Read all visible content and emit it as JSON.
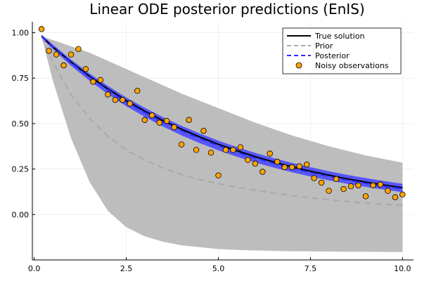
{
  "chart_data": {
    "type": "line",
    "title": "Linear ODE posterior predictions (EnIS)",
    "xlabel": "",
    "ylabel": "",
    "xlim": [
      -0.05,
      10.3
    ],
    "ylim": [
      -0.25,
      1.06
    ],
    "x_ticks": [
      0.0,
      2.5,
      5.0,
      7.5,
      10.0
    ],
    "x_tick_labels": [
      "0.0",
      "2.5",
      "5.0",
      "7.5",
      "10.0"
    ],
    "y_ticks": [
      0.0,
      0.25,
      0.5,
      0.75,
      1.0
    ],
    "y_tick_labels": [
      "0.00",
      "0.25",
      "0.50",
      "0.75",
      "1.00"
    ],
    "grid": true,
    "legend_position": "top-right",
    "colors": {
      "true_solution": "#000000",
      "prior": "#aaaaaa",
      "prior_band": "#bdbdbd",
      "posterior": "#2a2aff",
      "posterior_band": "#4a4aff",
      "observations": "#ffa500"
    },
    "series": [
      {
        "name": "True solution",
        "style": "solid",
        "x": [
          0.2,
          0.5,
          1.0,
          1.5,
          2.0,
          2.5,
          3.0,
          3.5,
          4.0,
          4.5,
          5.0,
          5.5,
          6.0,
          6.5,
          7.0,
          7.5,
          8.0,
          8.5,
          9.0,
          9.5,
          10.0
        ],
        "y": [
          0.98,
          0.923,
          0.838,
          0.76,
          0.69,
          0.627,
          0.569,
          0.516,
          0.469,
          0.426,
          0.386,
          0.351,
          0.318,
          0.289,
          0.262,
          0.238,
          0.216,
          0.196,
          0.178,
          0.162,
          0.147
        ]
      },
      {
        "name": "Prior",
        "style": "dashed",
        "x": [
          0.2,
          0.5,
          1.0,
          1.5,
          2.0,
          2.5,
          3.0,
          3.5,
          4.0,
          4.5,
          5.0,
          5.5,
          6.0,
          6.5,
          7.0,
          7.5,
          8.0,
          8.5,
          9.0,
          9.5,
          10.0
        ],
        "y": [
          0.98,
          0.84,
          0.66,
          0.53,
          0.43,
          0.355,
          0.3,
          0.255,
          0.22,
          0.192,
          0.17,
          0.15,
          0.133,
          0.118,
          0.104,
          0.092,
          0.081,
          0.071,
          0.063,
          0.056,
          0.05
        ],
        "band_upper": [
          0.98,
          0.96,
          0.925,
          0.89,
          0.845,
          0.8,
          0.755,
          0.71,
          0.665,
          0.625,
          0.585,
          0.545,
          0.505,
          0.47,
          0.435,
          0.405,
          0.375,
          0.35,
          0.325,
          0.305,
          0.285
        ],
        "band_lower": [
          0.98,
          0.74,
          0.42,
          0.18,
          0.02,
          -0.07,
          -0.12,
          -0.15,
          -0.17,
          -0.18,
          -0.19,
          -0.195,
          -0.198,
          -0.2,
          -0.202,
          -0.203,
          -0.204,
          -0.205,
          -0.205,
          -0.206,
          -0.206
        ]
      },
      {
        "name": "Posterior",
        "style": "dashed",
        "x": [
          0.2,
          0.5,
          1.0,
          1.5,
          2.0,
          2.5,
          3.0,
          3.5,
          4.0,
          4.5,
          5.0,
          5.5,
          6.0,
          6.5,
          7.0,
          7.5,
          8.0,
          8.5,
          9.0,
          9.5,
          10.0
        ],
        "y": [
          0.98,
          0.922,
          0.835,
          0.756,
          0.685,
          0.62,
          0.562,
          0.509,
          0.461,
          0.418,
          0.379,
          0.343,
          0.311,
          0.282,
          0.255,
          0.231,
          0.21,
          0.19,
          0.172,
          0.156,
          0.141
        ],
        "band_upper": [
          0.99,
          0.935,
          0.852,
          0.776,
          0.707,
          0.644,
          0.587,
          0.535,
          0.488,
          0.445,
          0.406,
          0.371,
          0.339,
          0.31,
          0.284,
          0.26,
          0.238,
          0.218,
          0.2,
          0.184,
          0.169
        ],
        "band_lower": [
          0.97,
          0.91,
          0.818,
          0.736,
          0.662,
          0.596,
          0.537,
          0.483,
          0.435,
          0.392,
          0.353,
          0.318,
          0.286,
          0.258,
          0.232,
          0.209,
          0.188,
          0.169,
          0.152,
          0.137,
          0.123
        ]
      },
      {
        "name": "Noisy observations",
        "style": "scatter",
        "x": [
          0.2,
          0.4,
          0.6,
          0.8,
          1.0,
          1.2,
          1.4,
          1.6,
          1.8,
          2.0,
          2.2,
          2.4,
          2.6,
          2.8,
          3.0,
          3.2,
          3.4,
          3.6,
          3.8,
          4.0,
          4.2,
          4.4,
          4.6,
          4.8,
          5.0,
          5.2,
          5.4,
          5.6,
          5.8,
          6.0,
          6.2,
          6.4,
          6.6,
          6.8,
          7.0,
          7.2,
          7.4,
          7.6,
          7.8,
          8.0,
          8.2,
          8.4,
          8.6,
          8.8,
          9.0,
          9.2,
          9.4,
          9.6,
          9.8,
          10.0
        ],
        "y": [
          1.02,
          0.9,
          0.88,
          0.82,
          0.88,
          0.91,
          0.8,
          0.73,
          0.74,
          0.66,
          0.63,
          0.63,
          0.61,
          0.68,
          0.52,
          0.545,
          0.505,
          0.515,
          0.48,
          0.385,
          0.52,
          0.355,
          0.46,
          0.34,
          0.215,
          0.355,
          0.355,
          0.37,
          0.3,
          0.28,
          0.235,
          0.335,
          0.29,
          0.26,
          0.26,
          0.265,
          0.275,
          0.2,
          0.175,
          0.13,
          0.195,
          0.14,
          0.155,
          0.16,
          0.1,
          0.16,
          0.165,
          0.13,
          0.095,
          0.11
        ]
      }
    ]
  }
}
